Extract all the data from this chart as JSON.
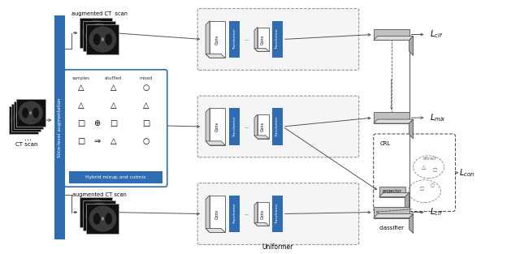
{
  "fig_width": 6.4,
  "fig_height": 3.13,
  "bg_color": "#ffffff",
  "blue_color": "#2e6db4",
  "dark_gray": "#555555",
  "med_gray": "#888888",
  "light_gray": "#d0d0d0",
  "box_gray": "#c0c0c0",
  "title_uniformer": "Uniformer",
  "title_ct": "CT scan",
  "title_aug1": "augmented CT  scan",
  "title_aug2": "augmented CT scan",
  "title_hybrid": "Hybrid mixup and cutmix",
  "title_classifier": "classifier",
  "title_crl": "CRL",
  "title_projector": "projector",
  "title_attract": "attract"
}
